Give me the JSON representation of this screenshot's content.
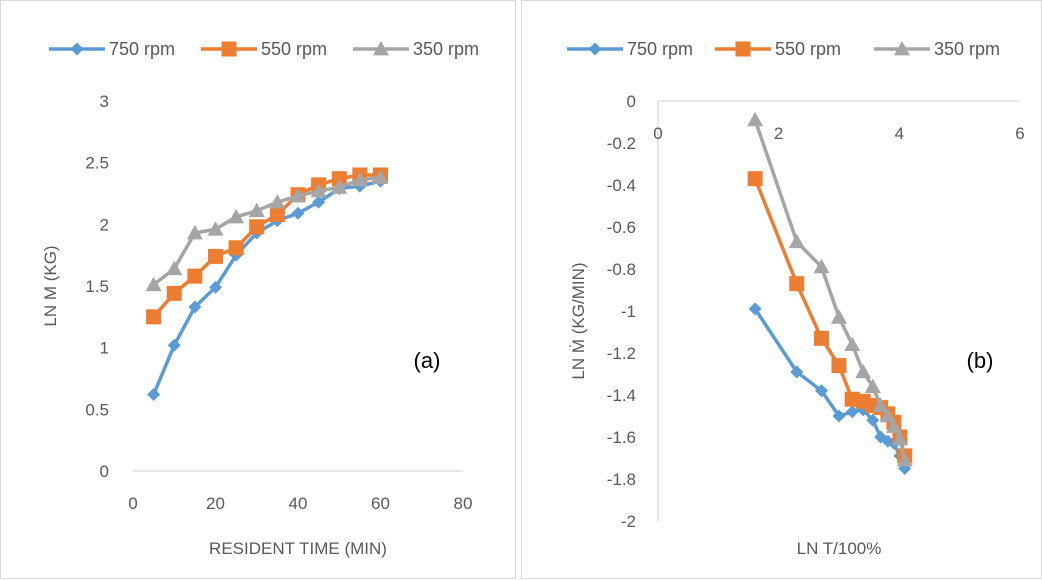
{
  "colors": {
    "series": [
      "#5b9bd5",
      "#ed7d31",
      "#a5a5a5"
    ],
    "axis": "#d9d9d9",
    "text": "#595959"
  },
  "chart_data": [
    {
      "type": "line",
      "panel_label": "(a)",
      "xlabel": "RESIDENT TIME (MIN)",
      "ylabel": "LN M (KG)",
      "xlim": [
        0,
        80
      ],
      "ylim": [
        0,
        3
      ],
      "xticks": [
        0,
        20,
        40,
        60,
        80
      ],
      "yticks": [
        0,
        0.5,
        1,
        1.5,
        2,
        2.5,
        3
      ],
      "x_tick_labels": [
        "0",
        "20",
        "40",
        "60",
        "80"
      ],
      "y_tick_labels": [
        "0",
        "0.5",
        "1",
        "1.5",
        "2",
        "2.5",
        "3"
      ],
      "grid": false,
      "legend_position": "top",
      "series": [
        {
          "name": "750 rpm",
          "marker": "diamond",
          "x": [
            5,
            10,
            15,
            20,
            25,
            30,
            35,
            40,
            45,
            50,
            55,
            60
          ],
          "y": [
            0.62,
            1.02,
            1.33,
            1.49,
            1.75,
            1.93,
            2.03,
            2.09,
            2.18,
            2.29,
            2.31,
            2.35
          ]
        },
        {
          "name": "550 rpm",
          "marker": "square",
          "x": [
            5,
            10,
            15,
            20,
            25,
            30,
            35,
            40,
            45,
            50,
            55,
            60
          ],
          "y": [
            1.25,
            1.44,
            1.58,
            1.74,
            1.81,
            1.98,
            2.08,
            2.24,
            2.32,
            2.37,
            2.4,
            2.4
          ]
        },
        {
          "name": "350 rpm",
          "marker": "triangle",
          "x": [
            5,
            10,
            15,
            20,
            25,
            30,
            35,
            40,
            45,
            50,
            55,
            60
          ],
          "y": [
            1.51,
            1.64,
            1.93,
            1.96,
            2.06,
            2.11,
            2.18,
            2.23,
            2.27,
            2.3,
            2.36,
            2.38
          ]
        }
      ]
    },
    {
      "type": "line",
      "panel_label": "(b)",
      "xlabel": "LN T/100%",
      "ylabel": "LN Ṁ (KG/MIN)",
      "xlim": [
        0,
        6
      ],
      "ylim": [
        -2,
        0
      ],
      "xticks": [
        0,
        2,
        4,
        6
      ],
      "yticks": [
        0,
        -0.2,
        -0.4,
        -0.6,
        -0.8,
        -1,
        -1.2,
        -1.4,
        -1.6,
        -1.8,
        -2
      ],
      "x_tick_labels": [
        "0",
        "2",
        "4",
        "6"
      ],
      "y_tick_labels": [
        "0",
        "-0.2",
        "-0.4",
        "-0.6",
        "-0.8",
        "-1",
        "-1.2",
        "-1.4",
        "-1.6",
        "-1.8",
        "-2"
      ],
      "x_axis_position": "top",
      "grid": false,
      "legend_position": "top",
      "series": [
        {
          "name": "750  rpm",
          "marker": "diamond",
          "x": [
            1.61,
            2.3,
            2.71,
            3.0,
            3.22,
            3.4,
            3.56,
            3.69,
            3.81,
            3.91,
            4.01,
            4.09
          ],
          "y": [
            -0.99,
            -1.29,
            -1.38,
            -1.5,
            -1.48,
            -1.47,
            -1.52,
            -1.6,
            -1.62,
            -1.63,
            -1.69,
            -1.75
          ]
        },
        {
          "name": "550 rpm",
          "marker": "square",
          "x": [
            1.61,
            2.3,
            2.71,
            3.0,
            3.22,
            3.4,
            3.56,
            3.69,
            3.81,
            3.91,
            4.01,
            4.09
          ],
          "y": [
            -0.37,
            -0.87,
            -1.13,
            -1.26,
            -1.42,
            -1.43,
            -1.45,
            -1.46,
            -1.49,
            -1.53,
            -1.6,
            -1.69
          ]
        },
        {
          "name": "350 rpm",
          "marker": "triangle",
          "x": [
            1.61,
            2.3,
            2.71,
            3.0,
            3.22,
            3.4,
            3.56,
            3.69,
            3.81,
            3.91,
            4.01,
            4.09
          ],
          "y": [
            -0.09,
            -0.67,
            -0.79,
            -1.03,
            -1.16,
            -1.29,
            -1.36,
            -1.45,
            -1.5,
            -1.55,
            -1.61,
            -1.71
          ]
        }
      ]
    }
  ]
}
